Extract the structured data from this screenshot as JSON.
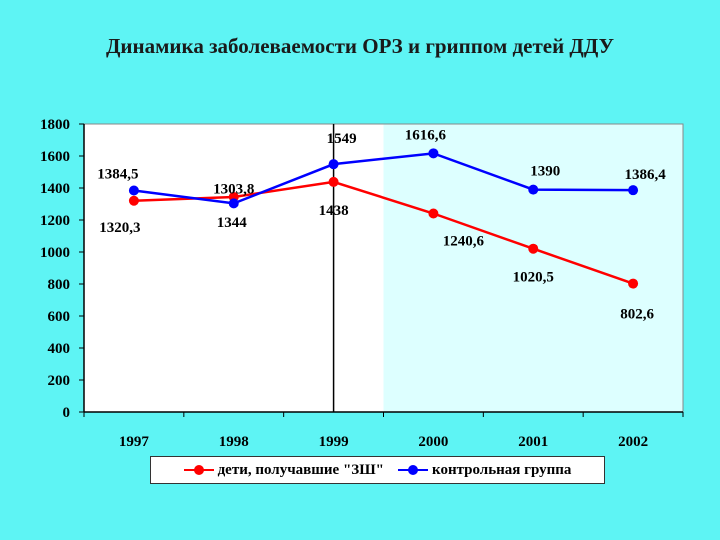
{
  "title": "Динамика заболеваемости ОРЗ и гриппом детей ДДУ",
  "chart_data": {
    "type": "line",
    "categories": [
      "1997",
      "1998",
      "1999",
      "2000",
      "2001",
      "2002"
    ],
    "ylim": [
      0,
      1800
    ],
    "yticks": [
      0,
      200,
      400,
      600,
      800,
      1000,
      1200,
      1400,
      1600,
      1800
    ],
    "grid": false,
    "legend_position": "bottom",
    "series": [
      {
        "name": "дети, получавшие \"ЗШ\"",
        "color": "#FF0000",
        "values": [
          1320.3,
          1344,
          1438,
          1240.6,
          1020.5,
          802.6
        ],
        "labels": [
          "1320,3",
          "1344",
          "1438",
          "1240,6",
          "1020,5",
          "802,6"
        ]
      },
      {
        "name": "контрольная группа",
        "color": "#0000FF",
        "values": [
          1384.5,
          1303.8,
          1549,
          1616.6,
          1390,
          1386.4
        ],
        "labels": [
          "1384,5",
          "1303,8",
          "1549",
          "1616,6",
          "1390",
          "1386,4"
        ]
      }
    ],
    "colors": {
      "plot_left_bg": "#FFFFFF",
      "plot_right_bg": "#DDFFFF",
      "separator": "#000000"
    }
  }
}
